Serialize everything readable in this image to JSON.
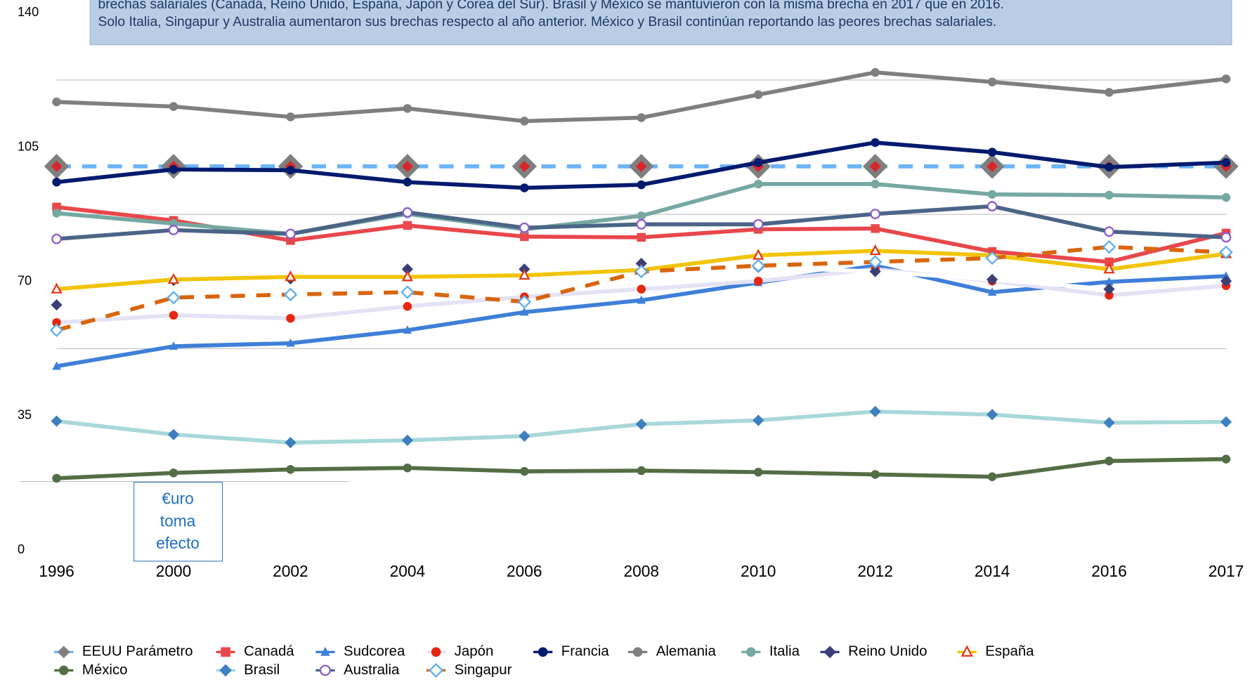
{
  "chart_data": {
    "type": "line",
    "note": [
      "brechas salariales (Canadá, Reino Unido, España, Japón y Corea del Sur). Brasil y México se mantuvieron con la misma brecha en 2017 que en 2016.",
      "Solo Italia, Singapur y Australia aumentaron sus brechas respecto al año anterior. México y Brasil continúan reportando las peores brechas salariales."
    ],
    "annotation": [
      "€uro",
      "toma",
      "efecto"
    ],
    "categories": [
      "1996",
      "2000",
      "2002",
      "2004",
      "2006",
      "2008",
      "2010",
      "2012",
      "2014",
      "2016",
      "2017"
    ],
    "ylim": [
      0,
      140
    ],
    "yticks": [
      0,
      35,
      70,
      105,
      140
    ],
    "grid_lines": [
      52.5,
      87.5,
      122.5
    ],
    "series": [
      {
        "name": "EEUU Parámetro",
        "color": "#7f7f7f",
        "line_color": "#6cb4f8",
        "dash": true,
        "marker": "diamond",
        "values": [
          100,
          100,
          100,
          100,
          100,
          100,
          100,
          100,
          100,
          100,
          100
        ]
      },
      {
        "name": "Canadá",
        "color": "#e8474b",
        "marker": "square",
        "values": [
          89.4,
          85.9,
          80.7,
          84.6,
          81.7,
          81.5,
          83.6,
          83.8,
          77.8,
          75.1,
          82.6
        ]
      },
      {
        "name": "Sudcorea",
        "color": "#3e7fd8",
        "marker": "triangle",
        "values": [
          47.9,
          53.1,
          53.9,
          57.3,
          62.0,
          65.1,
          69.7,
          74.1,
          67.2,
          69.9,
          71.4
        ]
      },
      {
        "name": "Japón",
        "color": "#e8260f",
        "line_color": "#e4e2f4",
        "marker": "circle",
        "values": [
          59.3,
          61.2,
          60.4,
          63.5,
          66.0,
          68.0,
          70.1,
          73.2,
          70.1,
          66.4,
          68.9
        ]
      },
      {
        "name": "Francia",
        "color": "#001a6e",
        "marker": "circle",
        "values": [
          95.9,
          99.2,
          99.0,
          95.9,
          94.4,
          95.2,
          101.0,
          106.2,
          103.7,
          99.8,
          101.0
        ]
      },
      {
        "name": "Alemania",
        "color": "#7f7f7f",
        "marker": "circle",
        "values": [
          116.8,
          115.6,
          112.9,
          115.1,
          111.8,
          112.7,
          118.7,
          124.5,
          122.0,
          119.3,
          122.8
        ]
      },
      {
        "name": "Italia",
        "color": "#76a8a3",
        "marker": "circle",
        "values": [
          87.8,
          85.1,
          82.4,
          87.6,
          83.6,
          87.1,
          95.4,
          95.4,
          92.7,
          92.5,
          91.9
        ]
      },
      {
        "name": "Reino Unido",
        "color": "#3b3f76",
        "line_color": "#ffffff",
        "marker": "diamond",
        "values": [
          63.9,
          70.3,
          70.7,
          73.2,
          73.2,
          74.7,
          73.7,
          72.6,
          70.5,
          68.0,
          70.1
        ]
      },
      {
        "name": "España",
        "color": "#e03a1a",
        "line_color": "#f2c40a",
        "marker": "triangle-open",
        "values": [
          68.0,
          70.5,
          71.2,
          71.2,
          71.6,
          73.0,
          76.8,
          78.0,
          76.8,
          73.2,
          77.2
        ]
      },
      {
        "name": "México",
        "color": "#536e45",
        "marker": "circle",
        "values": [
          18.7,
          20.1,
          21.0,
          21.4,
          20.5,
          20.7,
          20.3,
          19.7,
          19.1,
          23.2,
          23.7
        ]
      },
      {
        "name": "Brasil",
        "color": "#3e7fc0",
        "line_color": "#a8d8da",
        "marker": "diamond",
        "values": [
          33.6,
          30.1,
          28.0,
          28.6,
          29.7,
          32.8,
          33.8,
          36.1,
          35.3,
          33.2,
          33.4
        ]
      },
      {
        "name": "Australia",
        "color": "#8c5cc8",
        "line_color": "#4a6586",
        "marker": "circle-open",
        "values": [
          81.1,
          83.4,
          82.4,
          88.0,
          84.0,
          84.9,
          84.9,
          87.6,
          89.6,
          83.0,
          81.5
        ]
      },
      {
        "name": "Singapur",
        "color": "#5aaef0",
        "line_color": "#d9650c",
        "dash": true,
        "marker": "diamond-open",
        "values": [
          57.3,
          65.8,
          66.6,
          67.2,
          64.7,
          72.6,
          74.1,
          75.1,
          76.1,
          79.0,
          77.6
        ]
      }
    ]
  }
}
